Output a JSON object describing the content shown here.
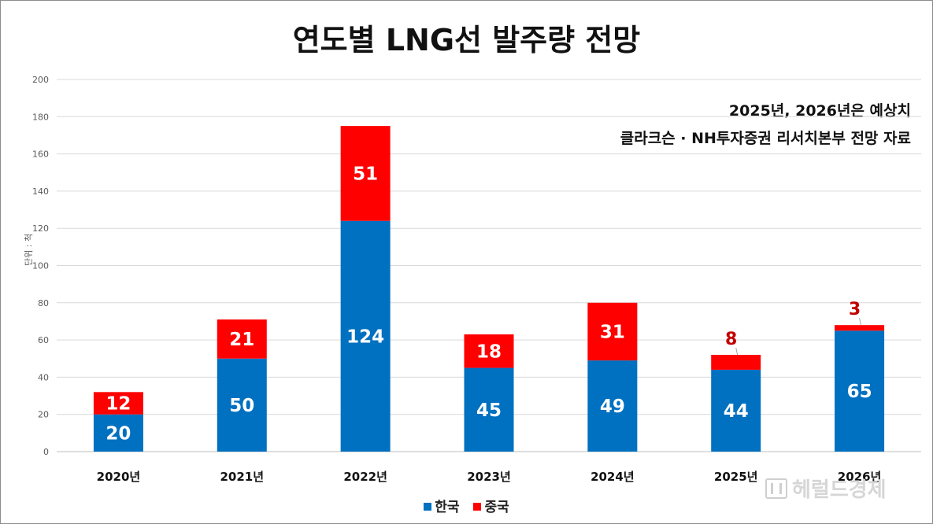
{
  "chart_data": {
    "type": "bar",
    "stacked": true,
    "title": "연도별 LNG선 발주량 전망",
    "ylabel": "단위 : 척",
    "xlabel": "",
    "categories": [
      "2020년",
      "2021년",
      "2022년",
      "2023년",
      "2024년",
      "2025년",
      "2026년"
    ],
    "series": [
      {
        "name": "한국",
        "color": "#0070c0",
        "values": [
          20,
          50,
          124,
          45,
          49,
          44,
          65
        ]
      },
      {
        "name": "중국",
        "color": "#ff0000",
        "values": [
          12,
          21,
          51,
          18,
          31,
          8,
          3
        ]
      }
    ],
    "ylim": [
      0,
      200
    ],
    "yticks": [
      "0",
      "20",
      "40",
      "60",
      "80",
      "100",
      "120",
      "140",
      "160",
      "180",
      "200"
    ],
    "grid": true,
    "legend_position": "bottom",
    "outside_label_color": "#c00000",
    "annotations": [
      "2025년, 2026년은 예상치",
      "클라크슨 · NH투자증권 리서치본부 전망 자료"
    ]
  },
  "watermark": {
    "text": "헤럴드경제"
  }
}
